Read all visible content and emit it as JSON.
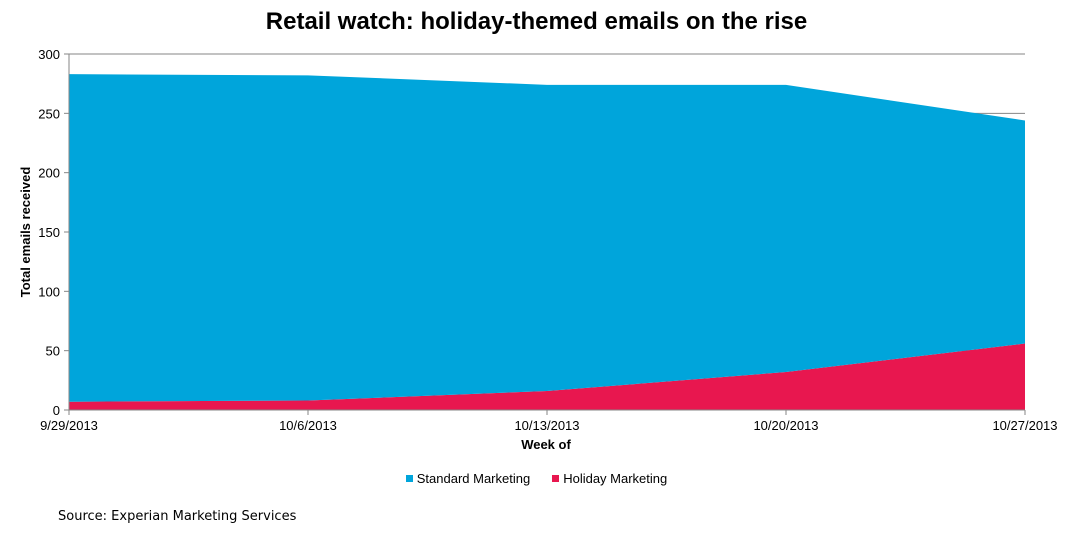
{
  "chart_data": {
    "type": "area",
    "stacked": true,
    "title": "Retail watch: holiday-themed emails on the rise",
    "xlabel": "Week of",
    "ylabel": "Total emails received",
    "categories": [
      "9/29/2013",
      "10/6/2013",
      "10/13/2013",
      "10/20/2013",
      "10/27/2013"
    ],
    "ylim": [
      0,
      300
    ],
    "yticks": [
      0,
      50,
      100,
      150,
      200,
      250,
      300
    ],
    "grid": true,
    "legend_position": "bottom",
    "series": [
      {
        "name": "Holiday Marketing",
        "color": "#E8174F",
        "values": [
          7,
          8,
          16,
          32,
          56
        ]
      },
      {
        "name": "Standard Marketing",
        "color": "#00A5DB",
        "values": [
          276,
          274,
          258,
          242,
          188
        ]
      }
    ]
  },
  "legend": {
    "items": [
      {
        "label": "Standard Marketing",
        "color": "#00A5DB"
      },
      {
        "label": "Holiday Marketing",
        "color": "#E8174F"
      }
    ]
  },
  "source": "Source: Experian Marketing Services"
}
